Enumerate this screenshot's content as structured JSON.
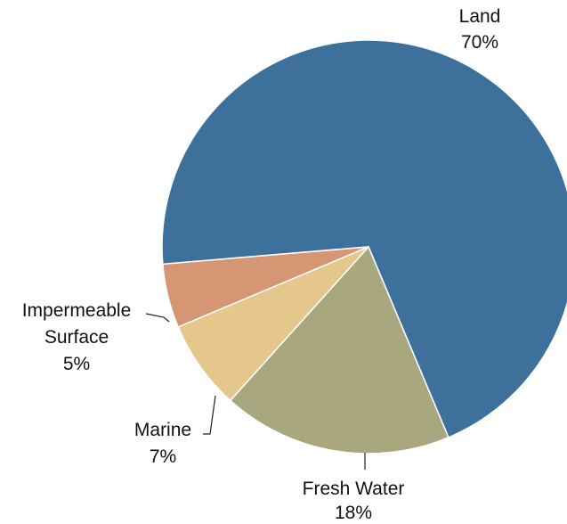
{
  "chart_data": {
    "type": "pie",
    "title": "",
    "slices": [
      {
        "label": "Land",
        "value": 70,
        "display": "70%",
        "color": "#3d719c"
      },
      {
        "label": "Fresh Water",
        "value": 18,
        "display": "18%",
        "color": "#a8a77e"
      },
      {
        "label": "Marine",
        "value": 7,
        "display": "7%",
        "color": "#e5c68b"
      },
      {
        "label": "Impermeable Surface",
        "value": 5,
        "display": "5%",
        "color": "#d49673"
      }
    ],
    "legend": "none"
  }
}
